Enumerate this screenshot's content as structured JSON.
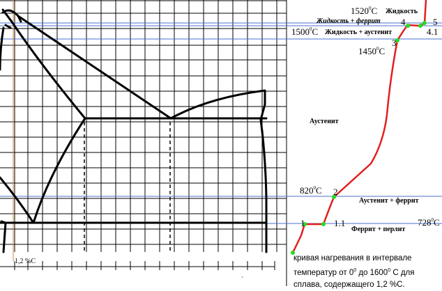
{
  "diagram": {
    "temperatures": {
      "t1520": "1520",
      "t1500": "1500",
      "t1450": "1450",
      "t820": "820",
      "t728": "728",
      "unit": "C"
    },
    "regions": {
      "liquid": "Жидкость",
      "liquid_ferrite": "Жидкость + феррит",
      "liquid_austenite": "Жидкость + аустенит",
      "austenite": "Аустенит",
      "austenite_ferrite": "Аустенит + феррит",
      "ferrite_pearlite": "Феррит + перлит"
    },
    "points": {
      "p1": "1",
      "p11": "1.1",
      "p2": "2",
      "p3": "3",
      "p4": "4",
      "p41": "4.1",
      "p5": "5"
    },
    "composition_label": "1,2 %С",
    "caption": {
      "part1": "кривая нагревания в интервале температур от 0",
      "part2": " до 1600",
      "part3": " С для сплава, содержащего 1,2 %С.",
      "degree": "0"
    },
    "colors": {
      "grid": "#000000",
      "phase_lines": "#000000",
      "temperature_lines": "#4a6fd0",
      "composition_line": "#d08a3a",
      "heating_curve": "#e02020",
      "points": "#22dd22"
    }
  }
}
